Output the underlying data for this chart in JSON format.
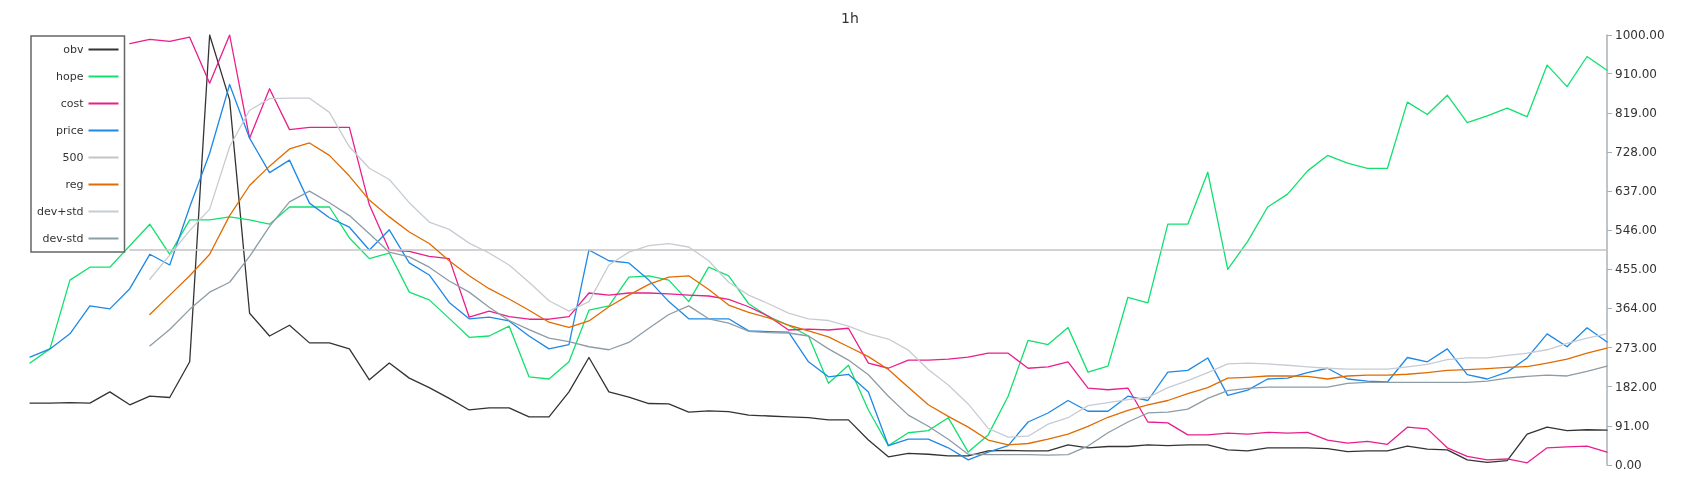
{
  "chart_data": {
    "type": "line",
    "title": "1h",
    "categories": [
      null,
      null,
      null,
      null,
      null,
      null,
      null,
      null,
      null,
      null,
      null,
      null,
      null,
      null,
      null,
      null,
      null,
      null,
      null,
      null,
      null,
      null,
      null,
      null,
      null,
      null,
      null,
      null,
      null,
      null,
      null,
      null,
      null,
      null,
      null,
      null,
      null,
      null,
      null,
      null,
      null,
      null,
      null,
      null,
      null,
      null,
      null,
      null,
      null,
      null,
      null,
      null,
      null,
      null,
      null,
      null,
      null,
      null,
      null,
      null,
      null,
      null,
      null,
      null,
      null,
      null,
      null,
      null,
      null,
      null,
      null,
      null,
      null,
      null,
      null,
      null,
      null,
      null,
      null,
      null
    ],
    "ylim": [
      0,
      1000
    ],
    "yticks": [
      {
        "value": 0,
        "label": "0.00"
      },
      {
        "value": 91,
        "label": "91.00"
      },
      {
        "value": 182,
        "label": "182.00"
      },
      {
        "value": 273,
        "label": "273.00"
      },
      {
        "value": 364,
        "label": "364.00"
      },
      {
        "value": 455,
        "label": "455.00"
      },
      {
        "value": 546,
        "label": "546.00"
      },
      {
        "value": 637,
        "label": "637.00"
      },
      {
        "value": 728,
        "label": "728.00"
      },
      {
        "value": 819,
        "label": "819.00"
      },
      {
        "value": 910,
        "label": "910.00"
      },
      {
        "value": 1000,
        "label": "1000.00"
      }
    ],
    "legend": "top left",
    "marker": "none",
    "line_style": "solid",
    "series": [
      {
        "name": "obv",
        "color": "#333333",
        "values": [
          144,
          144,
          145,
          144,
          170,
          140,
          160,
          157,
          240,
          1000,
          849,
          353,
          300,
          325,
          284,
          284,
          270,
          198,
          237,
          202,
          180,
          155,
          128,
          133,
          133,
          112,
          112,
          170,
          250,
          170,
          158,
          143,
          142,
          123,
          126,
          124,
          116,
          114,
          112,
          110,
          105,
          105,
          58,
          19,
          27,
          25,
          21,
          21,
          33,
          34,
          33,
          33,
          47,
          40,
          43,
          43,
          47,
          45,
          47,
          47,
          35,
          33,
          40,
          40,
          40,
          38,
          31,
          33,
          33,
          44,
          37,
          35,
          12,
          6,
          10,
          72,
          88,
          80,
          82,
          81
        ]
      },
      {
        "name": "hope",
        "color": "#12e06e",
        "values": [
          237,
          270,
          430,
          460,
          460,
          510,
          560,
          490,
          570,
          570,
          577,
          570,
          560,
          600,
          600,
          600,
          528,
          480,
          493,
          402,
          384,
          341,
          297,
          300,
          323,
          205,
          200,
          240,
          360,
          370,
          437,
          440,
          430,
          380,
          460,
          440,
          375,
          345,
          325,
          300,
          190,
          232,
          128,
          45,
          75,
          80,
          110,
          30,
          70,
          160,
          290,
          280,
          320,
          216,
          230,
          390,
          377,
          560,
          560,
          681,
          455,
          520,
          600,
          630,
          684,
          720,
          702,
          690,
          690,
          844,
          815,
          860,
          796,
          812,
          830,
          810,
          930,
          880,
          950,
          918
        ]
      },
      {
        "name": "cost",
        "color": "#e91e8c",
        "values": [
          null,
          null,
          null,
          null,
          null,
          980,
          990,
          985,
          995,
          888,
          1000,
          760,
          875,
          780,
          785,
          785,
          785,
          605,
          500,
          497,
          485,
          480,
          344,
          358,
          345,
          339,
          339,
          345,
          400,
          395,
          400,
          400,
          398,
          395,
          393,
          385,
          368,
          346,
          314,
          316,
          314,
          318,
          237,
          225,
          244,
          244,
          246,
          251,
          260,
          260,
          225,
          228,
          240,
          179,
          175,
          179,
          100,
          98,
          70,
          70,
          74,
          72,
          76,
          74,
          76,
          58,
          51,
          55,
          48,
          88,
          84,
          40,
          20,
          12,
          14,
          5,
          40,
          42,
          44,
          30
        ]
      },
      {
        "name": "price",
        "color": "#1e88e5",
        "values": [
          251,
          270,
          305,
          370,
          363,
          410,
          490,
          465,
          600,
          725,
          885,
          760,
          680,
          709,
          609,
          575,
          553,
          500,
          547,
          470,
          442,
          378,
          340,
          344,
          335,
          300,
          270,
          280,
          500,
          475,
          470,
          430,
          380,
          340,
          340,
          340,
          312,
          310,
          309,
          240,
          205,
          211,
          170,
          45,
          60,
          60,
          40,
          12,
          30,
          45,
          100,
          121,
          150,
          125,
          125,
          160,
          150,
          216,
          220,
          249,
          162,
          174,
          200,
          202,
          215,
          225,
          200,
          195,
          193,
          250,
          240,
          270,
          210,
          200,
          216,
          249,
          305,
          275,
          319,
          286
        ]
      },
      {
        "name": "500",
        "color": "#c4c4c4",
        "values": [
          null,
          null,
          null,
          null,
          null,
          500,
          500,
          500,
          500,
          500,
          500,
          500,
          500,
          500,
          500,
          500,
          500,
          500,
          500,
          500,
          500,
          500,
          500,
          500,
          500,
          500,
          500,
          500,
          500,
          500,
          500,
          500,
          500,
          500,
          500,
          500,
          500,
          500,
          500,
          500,
          500,
          500,
          500,
          500,
          500,
          500,
          500,
          500,
          500,
          500,
          500,
          500,
          500,
          500,
          500,
          500,
          500,
          500,
          500,
          500,
          500,
          500,
          500,
          500,
          500,
          500,
          500,
          500,
          500,
          500,
          500,
          500,
          500,
          500,
          500,
          500,
          500,
          500,
          500,
          500
        ]
      },
      {
        "name": "reg",
        "color": "#e06c00",
        "values": [
          null,
          null,
          null,
          null,
          null,
          null,
          350,
          395,
          440,
          490,
          580,
          650,
          695,
          735,
          749,
          720,
          672,
          616,
          577,
          542,
          515,
          475,
          440,
          410,
          386,
          360,
          332,
          320,
          335,
          368,
          395,
          420,
          437,
          440,
          408,
          372,
          355,
          342,
          325,
          312,
          298,
          275,
          252,
          222,
          181,
          140,
          113,
          88,
          58,
          47,
          50,
          60,
          72,
          90,
          111,
          127,
          140,
          150,
          166,
          180,
          202,
          204,
          207,
          207,
          206,
          200,
          207,
          209,
          209,
          211,
          215,
          220,
          222,
          224,
          227,
          229,
          237,
          246,
          260,
          272
        ]
      },
      {
        "name": "dev+std",
        "color": "#c6ccd2",
        "values": [
          null,
          null,
          null,
          null,
          null,
          null,
          432,
          488,
          545,
          595,
          740,
          825,
          852,
          853,
          853,
          820,
          740,
          690,
          664,
          610,
          565,
          548,
          516,
          493,
          465,
          425,
          382,
          358,
          380,
          465,
          495,
          510,
          515,
          507,
          475,
          425,
          395,
          375,
          353,
          340,
          336,
          323,
          305,
          293,
          267,
          222,
          186,
          142,
          85,
          65,
          67,
          95,
          110,
          138,
          145,
          152,
          157,
          180,
          196,
          215,
          235,
          237,
          235,
          232,
          228,
          225,
          223,
          223,
          223,
          228,
          234,
          245,
          249,
          249,
          255,
          260,
          268,
          283,
          295,
          305
        ]
      },
      {
        "name": "dev-std",
        "color": "#8e9ca6",
        "values": [
          null,
          null,
          null,
          null,
          null,
          null,
          277,
          315,
          362,
          402,
          425,
          485,
          555,
          612,
          637,
          610,
          580,
          538,
          495,
          484,
          460,
          428,
          402,
          367,
          336,
          315,
          295,
          287,
          275,
          268,
          285,
          318,
          350,
          370,
          340,
          330,
          311,
          308,
          307,
          300,
          270,
          244,
          210,
          160,
          116,
          90,
          60,
          25,
          24,
          24,
          24,
          23,
          24,
          44,
          75,
          100,
          121,
          123,
          130,
          155,
          173,
          178,
          181,
          181,
          181,
          181,
          190,
          192,
          192,
          192,
          192,
          192,
          192,
          195,
          202,
          206,
          209,
          207,
          218,
          230
        ]
      }
    ]
  }
}
